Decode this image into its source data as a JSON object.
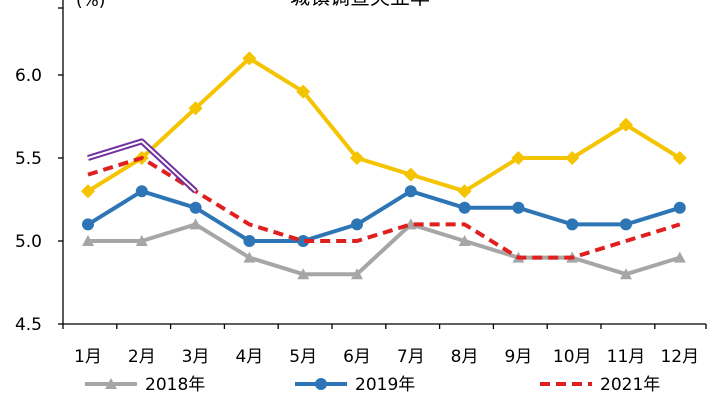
{
  "chart_data": {
    "type": "line",
    "title": "城镇调查失业率",
    "ylabel": "(%)",
    "xlabel": "",
    "ylim": [
      4.5,
      6.5
    ],
    "yticks": [
      "4.5",
      "5.0",
      "5.5",
      "6.0"
    ],
    "grid": false,
    "legend_position": "bottom",
    "categories": [
      "1月",
      "2月",
      "3月",
      "4月",
      "5月",
      "6月",
      "7月",
      "8月",
      "9月",
      "10月",
      "11月",
      "12月"
    ],
    "series": [
      {
        "name": "2018年",
        "color": "#a6a6a6",
        "marker": "triangle",
        "style": "solid",
        "values": [
          5.0,
          5.0,
          5.1,
          4.9,
          4.8,
          4.8,
          5.1,
          5.0,
          4.9,
          4.9,
          4.8,
          4.9
        ]
      },
      {
        "name": "2019年",
        "color": "#2e75b6",
        "marker": "circle",
        "style": "solid",
        "values": [
          5.1,
          5.3,
          5.2,
          5.0,
          5.0,
          5.1,
          5.3,
          5.2,
          5.2,
          5.1,
          5.1,
          5.2
        ]
      },
      {
        "name": "",
        "color": "#f5c400",
        "marker": "diamond",
        "style": "solid",
        "values": [
          5.3,
          5.5,
          5.8,
          6.1,
          5.9,
          5.5,
          5.4,
          5.3,
          5.5,
          5.5,
          5.7,
          5.5
        ]
      },
      {
        "name": "2021年",
        "color": "#e02020",
        "marker": "none",
        "style": "dashed",
        "values": [
          5.4,
          5.5,
          5.3,
          5.1,
          5.0,
          5.0,
          5.1,
          5.1,
          4.9,
          4.9,
          5.0,
          5.1
        ]
      },
      {
        "name": "",
        "color": "#7030a0",
        "marker": "none",
        "style": "double",
        "values": [
          5.5,
          5.6,
          5.3,
          null,
          null,
          null,
          null,
          null,
          null,
          null,
          null,
          null
        ]
      }
    ],
    "legend": [
      "2018年",
      "2019年",
      "2021年"
    ]
  }
}
